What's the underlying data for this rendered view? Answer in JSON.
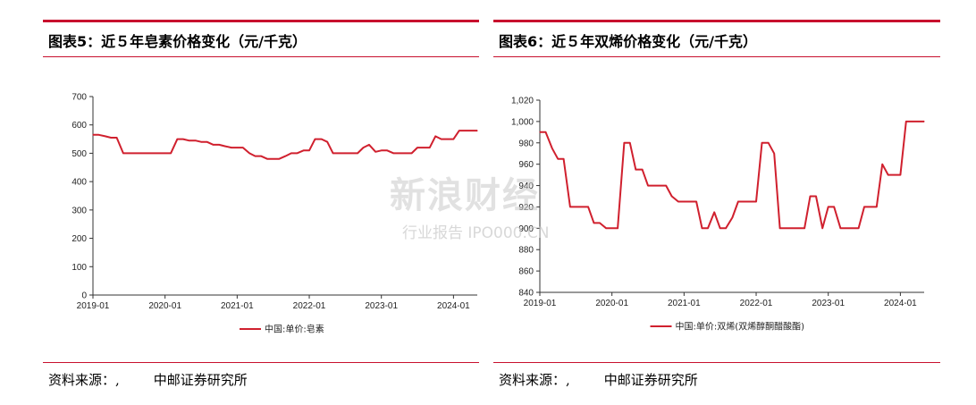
{
  "colors": {
    "accent": "#c8102e",
    "series": "#d0202e",
    "axis": "#333333"
  },
  "charts": [
    {
      "title": "图表5：近５年皂素价格变化（元/千克）",
      "source_label": "资料来源：,",
      "source_org": "中邮证券研究所"
    },
    {
      "title": "图表6：近５年双烯价格变化（元/千克）",
      "source_label": "资料来源：,",
      "source_org": "中邮证券研究所"
    }
  ],
  "chart_data": [
    {
      "type": "line",
      "title": "",
      "xlabel": "",
      "ylabel": "",
      "ylim": [
        0,
        700
      ],
      "yticks": [
        "0",
        "100",
        "200",
        "300",
        "400",
        "500",
        "600",
        "700"
      ],
      "xticks": [
        {
          "t": 2019.0,
          "label": "2019-01"
        },
        {
          "t": 2020.0,
          "label": "2020-01"
        },
        {
          "t": 2021.0,
          "label": "2021-01"
        },
        {
          "t": 2022.0,
          "label": "2022-01"
        },
        {
          "t": 2023.0,
          "label": "2023-01"
        },
        {
          "t": 2024.0,
          "label": "2024-01"
        }
      ],
      "xlim": [
        2019.0,
        2024.33
      ],
      "grid": false,
      "legend_position": "bottom-center",
      "series": [
        {
          "name": "中国:单价:皂素",
          "x": [
            2019.0,
            2019.08,
            2019.17,
            2019.25,
            2019.33,
            2019.42,
            2019.5,
            2019.67,
            2019.83,
            2020.0,
            2020.08,
            2020.17,
            2020.25,
            2020.33,
            2020.42,
            2020.5,
            2020.58,
            2020.67,
            2020.75,
            2020.83,
            2020.92,
            2021.0,
            2021.08,
            2021.17,
            2021.25,
            2021.33,
            2021.42,
            2021.5,
            2021.58,
            2021.67,
            2021.75,
            2021.83,
            2021.92,
            2022.0,
            2022.08,
            2022.17,
            2022.25,
            2022.33,
            2022.42,
            2022.5,
            2022.58,
            2022.67,
            2022.75,
            2022.83,
            2022.92,
            2023.0,
            2023.08,
            2023.17,
            2023.25,
            2023.33,
            2023.42,
            2023.5,
            2023.58,
            2023.67,
            2023.75,
            2023.83,
            2023.92,
            2024.0,
            2024.08,
            2024.17,
            2024.25,
            2024.33
          ],
          "y": [
            565,
            565,
            560,
            555,
            555,
            500,
            500,
            500,
            500,
            500,
            500,
            550,
            550,
            545,
            545,
            540,
            540,
            530,
            530,
            525,
            520,
            520,
            520,
            500,
            490,
            490,
            480,
            480,
            480,
            490,
            500,
            500,
            510,
            510,
            550,
            550,
            540,
            500,
            500,
            500,
            500,
            500,
            520,
            530,
            505,
            510,
            510,
            500,
            500,
            500,
            500,
            520,
            520,
            520,
            560,
            550,
            550,
            550,
            580,
            580,
            580,
            580
          ]
        }
      ]
    },
    {
      "type": "line",
      "title": "",
      "xlabel": "",
      "ylabel": "",
      "ylim": [
        840,
        1020
      ],
      "yticks": [
        "840",
        "860",
        "880",
        "900",
        "920",
        "940",
        "960",
        "980",
        "1,000",
        "1,020"
      ],
      "xticks": [
        {
          "t": 2019.0,
          "label": "2019-01"
        },
        {
          "t": 2020.0,
          "label": "2020-01"
        },
        {
          "t": 2021.0,
          "label": "2021-01"
        },
        {
          "t": 2022.0,
          "label": "2022-01"
        },
        {
          "t": 2023.0,
          "label": "2023-01"
        },
        {
          "t": 2024.0,
          "label": "2024-01"
        }
      ],
      "xlim": [
        2019.0,
        2024.33
      ],
      "grid": false,
      "legend_position": "bottom-center",
      "series": [
        {
          "name": "中国:单价:双烯(双烯醇酮醋酸酯)",
          "x": [
            2019.0,
            2019.08,
            2019.17,
            2019.25,
            2019.33,
            2019.42,
            2019.5,
            2019.58,
            2019.67,
            2019.75,
            2019.83,
            2019.92,
            2020.0,
            2020.08,
            2020.17,
            2020.25,
            2020.33,
            2020.42,
            2020.5,
            2020.58,
            2020.67,
            2020.75,
            2020.83,
            2020.92,
            2021.0,
            2021.08,
            2021.17,
            2021.25,
            2021.33,
            2021.42,
            2021.5,
            2021.58,
            2021.67,
            2021.75,
            2021.83,
            2021.92,
            2022.0,
            2022.08,
            2022.17,
            2022.25,
            2022.33,
            2022.42,
            2022.5,
            2022.58,
            2022.67,
            2022.75,
            2022.83,
            2022.92,
            2023.0,
            2023.08,
            2023.17,
            2023.25,
            2023.33,
            2023.42,
            2023.5,
            2023.58,
            2023.67,
            2023.75,
            2023.83,
            2023.92,
            2024.0,
            2024.08,
            2024.17,
            2024.25,
            2024.33
          ],
          "y": [
            990,
            990,
            975,
            965,
            965,
            920,
            920,
            920,
            920,
            905,
            905,
            900,
            900,
            900,
            980,
            980,
            955,
            955,
            940,
            940,
            940,
            940,
            930,
            925,
            925,
            925,
            925,
            900,
            900,
            915,
            900,
            900,
            910,
            925,
            925,
            925,
            925,
            980,
            980,
            970,
            900,
            900,
            900,
            900,
            900,
            930,
            930,
            900,
            920,
            920,
            900,
            900,
            900,
            900,
            920,
            920,
            920,
            960,
            950,
            950,
            950,
            1000,
            1000,
            1000,
            1000
          ]
        }
      ]
    }
  ],
  "watermark": {
    "main": "新浪财经",
    "sub": "行业报告 IPO000.CN"
  }
}
